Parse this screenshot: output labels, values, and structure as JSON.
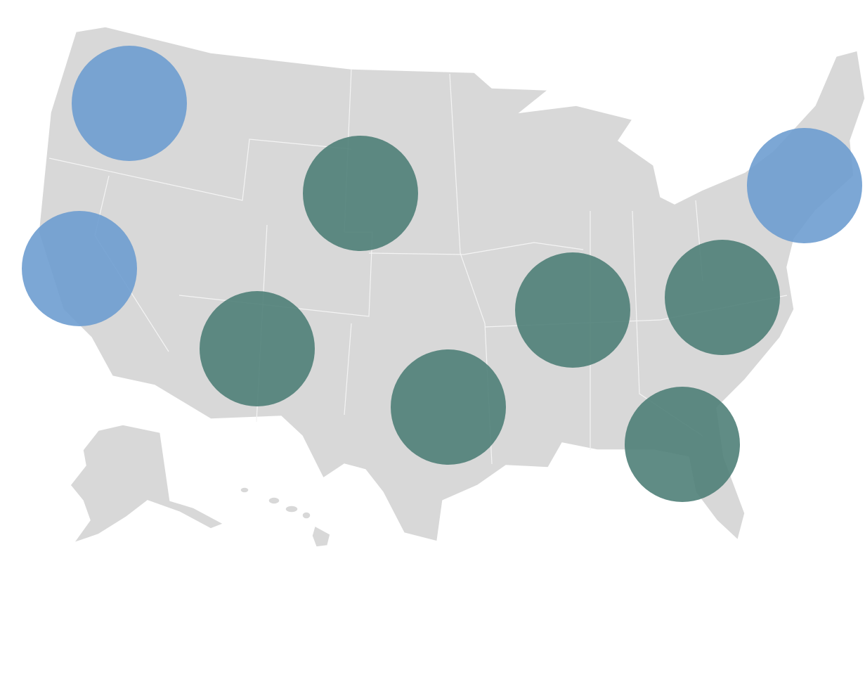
{
  "markers": [
    {
      "color": "#6a9bcf"
    },
    {
      "color": "#6a9bcf"
    },
    {
      "color": "#4a7c74"
    },
    {
      "color": "#4a7c74"
    },
    {
      "color": "#4a7c74"
    },
    {
      "color": "#4a7c74"
    },
    {
      "color": "#4a7c74"
    },
    {
      "color": "#6a9bcf"
    },
    {
      "color": "#4a7c74"
    }
  ]
}
